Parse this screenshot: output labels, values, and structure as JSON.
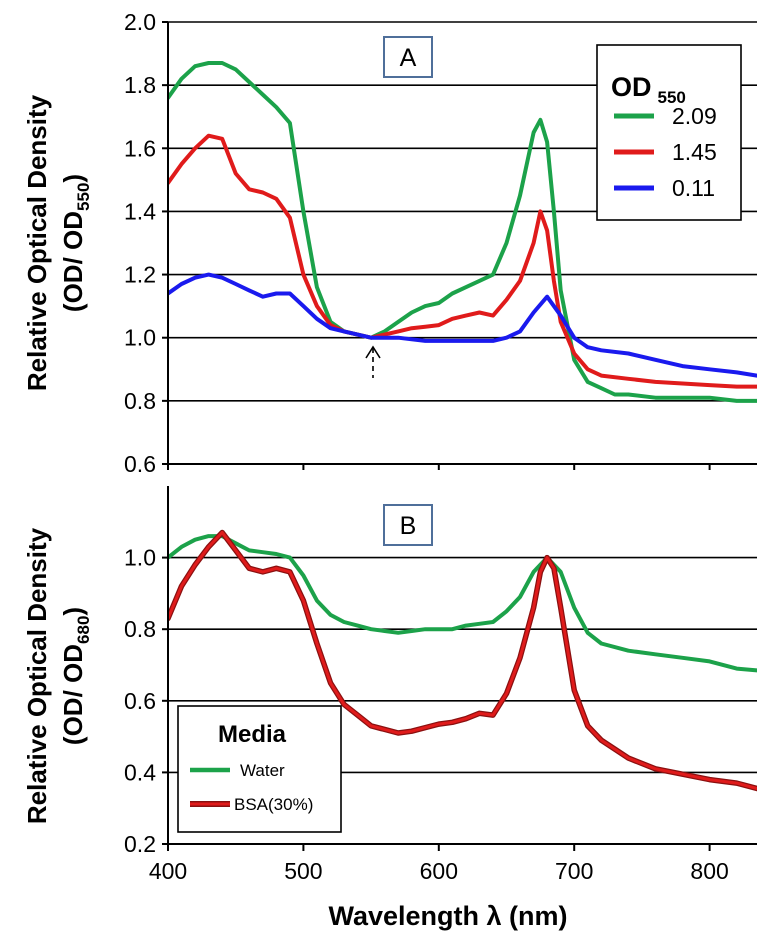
{
  "x_axis": {
    "label": "Wavelength λ (nm)",
    "range": [
      400,
      835
    ],
    "ticks": [
      400,
      500,
      600,
      700,
      800
    ]
  },
  "chart_data": [
    {
      "type": "line",
      "panel_label": "A",
      "ylabel_line1": "Relative Optical Density",
      "ylabel_line2": "(OD/ OD",
      "ylabel_subscript": "550",
      "ylabel_close": ")",
      "ylim": [
        0.6,
        2.0
      ],
      "yticks": [
        0.6,
        0.8,
        1.0,
        1.2,
        1.4,
        1.6,
        1.8,
        2.0
      ],
      "grid": true,
      "legend": {
        "title": "OD",
        "title_subscript": "550",
        "placement": "top-right"
      },
      "annotation": "normalization at 550 nm (dashed arrow)",
      "series": [
        {
          "name": "2.09",
          "color": "#1ca24a",
          "x": [
            400,
            410,
            420,
            430,
            440,
            450,
            460,
            470,
            480,
            490,
            500,
            510,
            520,
            530,
            540,
            550,
            560,
            570,
            580,
            590,
            600,
            610,
            620,
            630,
            640,
            650,
            660,
            670,
            675,
            680,
            685,
            690,
            700,
            710,
            720,
            730,
            740,
            760,
            780,
            800,
            820,
            835
          ],
          "y": [
            1.76,
            1.82,
            1.86,
            1.87,
            1.87,
            1.85,
            1.81,
            1.77,
            1.73,
            1.68,
            1.4,
            1.16,
            1.05,
            1.02,
            1.01,
            1.0,
            1.02,
            1.05,
            1.08,
            1.1,
            1.11,
            1.14,
            1.16,
            1.18,
            1.2,
            1.3,
            1.45,
            1.65,
            1.69,
            1.62,
            1.4,
            1.15,
            0.93,
            0.86,
            0.84,
            0.82,
            0.82,
            0.81,
            0.81,
            0.81,
            0.8,
            0.8
          ]
        },
        {
          "name": "1.45",
          "color": "#e01b1b",
          "x": [
            400,
            410,
            420,
            430,
            440,
            450,
            460,
            470,
            480,
            490,
            500,
            510,
            520,
            530,
            540,
            550,
            560,
            570,
            580,
            590,
            600,
            610,
            620,
            630,
            640,
            650,
            660,
            670,
            675,
            680,
            685,
            690,
            700,
            710,
            720,
            740,
            760,
            780,
            800,
            820,
            835
          ],
          "y": [
            1.49,
            1.55,
            1.6,
            1.64,
            1.63,
            1.52,
            1.47,
            1.46,
            1.44,
            1.38,
            1.2,
            1.1,
            1.04,
            1.02,
            1.01,
            1.0,
            1.01,
            1.02,
            1.03,
            1.035,
            1.04,
            1.06,
            1.07,
            1.08,
            1.07,
            1.12,
            1.18,
            1.3,
            1.4,
            1.34,
            1.18,
            1.05,
            0.95,
            0.9,
            0.88,
            0.87,
            0.86,
            0.855,
            0.85,
            0.845,
            0.845
          ]
        },
        {
          "name": "0.11",
          "color": "#1a1aee",
          "x": [
            400,
            410,
            420,
            430,
            440,
            450,
            460,
            470,
            480,
            490,
            500,
            510,
            520,
            530,
            540,
            550,
            560,
            570,
            580,
            590,
            600,
            610,
            620,
            630,
            640,
            650,
            660,
            670,
            680,
            690,
            700,
            710,
            720,
            740,
            760,
            780,
            800,
            820,
            835
          ],
          "y": [
            1.14,
            1.17,
            1.19,
            1.2,
            1.19,
            1.17,
            1.15,
            1.13,
            1.14,
            1.14,
            1.1,
            1.06,
            1.03,
            1.02,
            1.01,
            1.0,
            1.0,
            1.0,
            0.995,
            0.99,
            0.99,
            0.99,
            0.99,
            0.99,
            0.99,
            1.0,
            1.02,
            1.08,
            1.13,
            1.07,
            1.0,
            0.97,
            0.96,
            0.95,
            0.93,
            0.91,
            0.9,
            0.89,
            0.88
          ]
        }
      ]
    },
    {
      "type": "line",
      "panel_label": "B",
      "ylabel_line1": "Relative Optical Density",
      "ylabel_line2": "(OD/ OD",
      "ylabel_subscript": "680",
      "ylabel_close": ")",
      "ylim": [
        0.2,
        1.2
      ],
      "yticks": [
        0.2,
        0.4,
        0.6,
        0.8,
        1.0
      ],
      "grid": true,
      "legend": {
        "title": "Media",
        "placement": "bottom-left"
      },
      "series": [
        {
          "name": "Water",
          "color": "#1ca24a",
          "x": [
            400,
            410,
            420,
            430,
            440,
            450,
            460,
            470,
            480,
            490,
            500,
            510,
            520,
            530,
            540,
            550,
            560,
            570,
            580,
            590,
            600,
            610,
            620,
            630,
            640,
            650,
            660,
            670,
            680,
            690,
            700,
            710,
            720,
            740,
            760,
            780,
            800,
            820,
            835
          ],
          "y": [
            1.0,
            1.03,
            1.05,
            1.06,
            1.06,
            1.04,
            1.02,
            1.015,
            1.01,
            1.0,
            0.95,
            0.88,
            0.84,
            0.82,
            0.81,
            0.8,
            0.795,
            0.79,
            0.795,
            0.8,
            0.8,
            0.8,
            0.81,
            0.815,
            0.82,
            0.85,
            0.89,
            0.96,
            1.0,
            0.96,
            0.86,
            0.79,
            0.76,
            0.74,
            0.73,
            0.72,
            0.71,
            0.69,
            0.685
          ]
        },
        {
          "name": "BSA(30%)",
          "color": "#e01b1b",
          "x": [
            400,
            410,
            420,
            430,
            440,
            450,
            460,
            470,
            480,
            490,
            500,
            510,
            520,
            530,
            540,
            550,
            560,
            570,
            580,
            590,
            600,
            610,
            620,
            630,
            640,
            650,
            660,
            670,
            675,
            680,
            685,
            690,
            700,
            710,
            720,
            740,
            760,
            780,
            800,
            820,
            835
          ],
          "y": [
            0.83,
            0.92,
            0.98,
            1.03,
            1.07,
            1.02,
            0.97,
            0.96,
            0.97,
            0.96,
            0.88,
            0.76,
            0.65,
            0.59,
            0.56,
            0.53,
            0.52,
            0.51,
            0.515,
            0.525,
            0.535,
            0.54,
            0.55,
            0.565,
            0.56,
            0.62,
            0.72,
            0.86,
            0.96,
            1.0,
            0.97,
            0.86,
            0.63,
            0.53,
            0.49,
            0.44,
            0.41,
            0.395,
            0.38,
            0.37,
            0.355
          ]
        }
      ]
    }
  ]
}
